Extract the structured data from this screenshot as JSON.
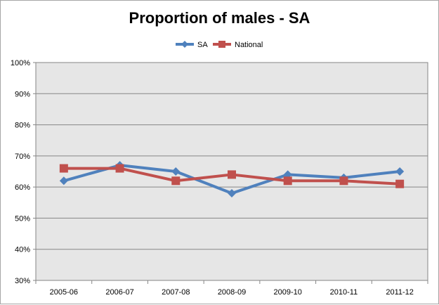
{
  "chart_data": {
    "type": "line",
    "title": "Proportion of males - SA",
    "categories": [
      "2005-06",
      "2006-07",
      "2007-08",
      "2008-09",
      "2009-10",
      "2010-11",
      "2011-12"
    ],
    "series": [
      {
        "name": "SA",
        "values": [
          62,
          67,
          65,
          58,
          64,
          63,
          65
        ],
        "color": "#4f81bd",
        "marker": "diamond"
      },
      {
        "name": "National",
        "values": [
          66,
          66,
          62,
          64,
          62,
          62,
          61
        ],
        "color": "#c0504d",
        "marker": "square"
      }
    ],
    "ylim": [
      30,
      100
    ],
    "yticks": [
      "30%",
      "40%",
      "50%",
      "60%",
      "70%",
      "80%",
      "90%",
      "100%"
    ],
    "grid": true,
    "legend_position": "top",
    "plot_background": "#e6e6e6",
    "gridline_color": "#868686"
  }
}
